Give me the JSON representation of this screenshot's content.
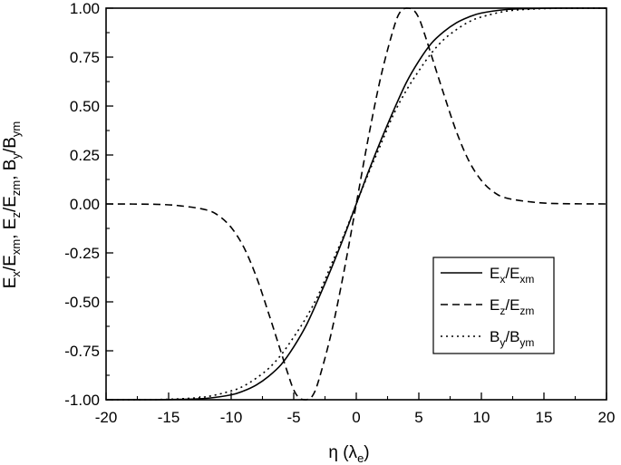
{
  "chart_data": {
    "type": "line",
    "xlim": [
      -20,
      20
    ],
    "ylim": [
      -1.0,
      1.0
    ],
    "x_ticks": [
      "-20",
      "-15",
      "-10",
      "-5",
      "0",
      "5",
      "10",
      "15",
      "20"
    ],
    "y_ticks": [
      "-1.00",
      "-0.75",
      "-0.50",
      "-0.25",
      "0.00",
      "0.25",
      "0.50",
      "0.75",
      "1.00"
    ],
    "xlabel": {
      "main": "η (λ",
      "sub": "e",
      "tail": ")"
    },
    "ylabel": {
      "parts": [
        {
          "t": "E",
          "s": "x"
        },
        {
          "t": "/E",
          "s": "xm"
        },
        {
          "t": ",  E",
          "s": "z"
        },
        {
          "t": "/E",
          "s": "zm"
        },
        {
          "t": ",  B",
          "s": "y"
        },
        {
          "t": "/B",
          "s": "ym"
        }
      ]
    },
    "legend_position": "center-right",
    "series": [
      {
        "name": "Ex/Exm",
        "label": {
          "a": "E",
          "as": "x",
          "b": "/E",
          "bs": "xm"
        },
        "style": "solid",
        "x": [
          -20,
          -16,
          -14,
          -12,
          -10,
          -9,
          -8,
          -7,
          -6,
          -5,
          -4,
          -3,
          -2,
          -1,
          0,
          1,
          2,
          3,
          4,
          5,
          6,
          7,
          8,
          9,
          10,
          12,
          14,
          16,
          20
        ],
        "y": [
          -1.0,
          -1.0,
          -0.998,
          -0.993,
          -0.975,
          -0.955,
          -0.925,
          -0.88,
          -0.82,
          -0.73,
          -0.62,
          -0.48,
          -0.33,
          -0.17,
          0.0,
          0.17,
          0.33,
          0.48,
          0.62,
          0.73,
          0.82,
          0.88,
          0.925,
          0.955,
          0.975,
          0.993,
          0.998,
          1.0,
          1.0
        ]
      },
      {
        "name": "Ez/Ezm",
        "label": {
          "a": "E",
          "as": "z",
          "b": "/E",
          "bs": "zm"
        },
        "style": "dashed",
        "x": [
          -20,
          -16,
          -14,
          -12,
          -11,
          -10,
          -9,
          -8,
          -7,
          -6,
          -5.5,
          -5,
          -4.5,
          -4,
          -3.5,
          -3,
          -2,
          -1,
          0,
          1,
          2,
          3,
          3.5,
          4,
          4.5,
          5,
          5.5,
          6,
          7,
          8,
          9,
          10,
          11,
          12,
          14,
          16,
          20
        ],
        "y": [
          0.0,
          -0.002,
          -0.01,
          -0.03,
          -0.06,
          -0.12,
          -0.22,
          -0.37,
          -0.56,
          -0.76,
          -0.86,
          -0.95,
          -0.995,
          -1.0,
          -0.98,
          -0.9,
          -0.66,
          -0.35,
          0.0,
          0.35,
          0.66,
          0.9,
          0.98,
          1.0,
          0.995,
          0.95,
          0.86,
          0.76,
          0.56,
          0.37,
          0.22,
          0.12,
          0.06,
          0.03,
          0.01,
          0.002,
          0.0
        ]
      },
      {
        "name": "By/Bym",
        "label": {
          "a": "B",
          "as": "y",
          "b": "/B",
          "bs": "ym"
        },
        "style": "dotted",
        "x": [
          -20,
          -16,
          -14,
          -12,
          -10,
          -9,
          -8,
          -7,
          -6,
          -5,
          -4,
          -3,
          -2,
          -1,
          0,
          1,
          2,
          3,
          4,
          5,
          6,
          7,
          8,
          9,
          10,
          12,
          14,
          16,
          20
        ],
        "y": [
          -1.0,
          -0.999,
          -0.995,
          -0.985,
          -0.955,
          -0.93,
          -0.89,
          -0.84,
          -0.77,
          -0.68,
          -0.58,
          -0.46,
          -0.31,
          -0.16,
          0.0,
          0.16,
          0.31,
          0.46,
          0.58,
          0.68,
          0.77,
          0.84,
          0.89,
          0.93,
          0.955,
          0.985,
          0.995,
          0.999,
          1.0
        ]
      }
    ]
  }
}
